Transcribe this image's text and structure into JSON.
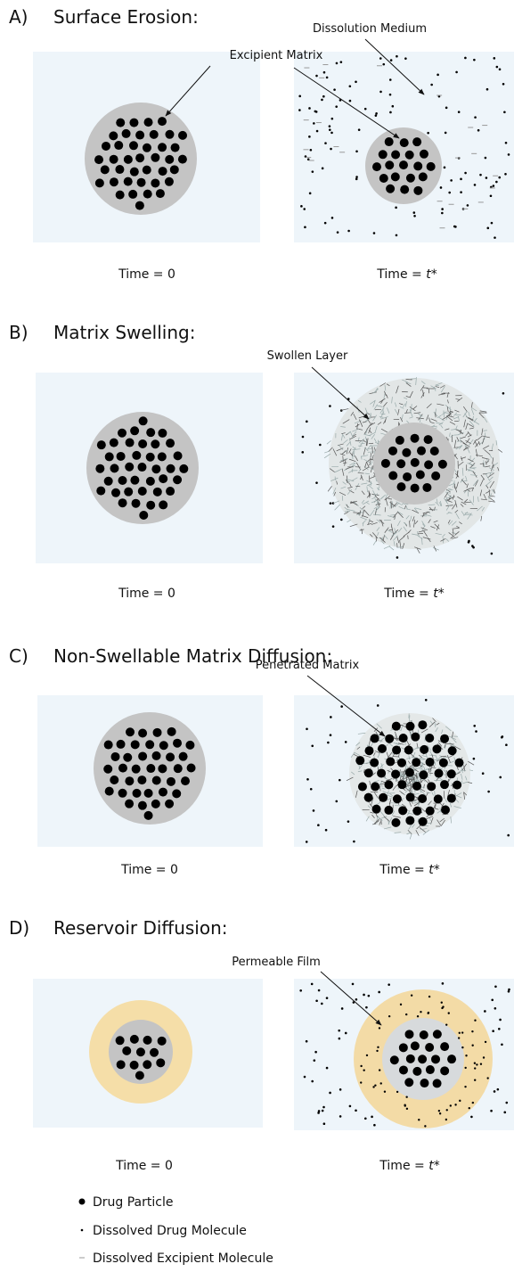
{
  "panels": [
    {
      "label": "A)",
      "title": "Surface Erosion:",
      "callouts": [
        "Dissolution Medium",
        "Excipient Matrix"
      ],
      "time_left": "Time = 0",
      "time_right": {
        "prefix": "Time = ",
        "variable": "t",
        "suffix": "*"
      }
    },
    {
      "label": "B)",
      "title": "Matrix Swelling:",
      "callouts": [
        "Swollen Layer"
      ],
      "time_left": "Time = 0",
      "time_right": {
        "prefix": "Time = ",
        "variable": "t",
        "suffix": "*"
      }
    },
    {
      "label": "C)",
      "title": "Non-Swellable Matrix Diffusion:",
      "callouts": [
        "Penetrated Matrix"
      ],
      "time_left": "Time = 0",
      "time_right": {
        "prefix": "Time = ",
        "variable": "t",
        "suffix": "*"
      }
    },
    {
      "label": "D)",
      "title": "Reservoir Diffusion:",
      "callouts": [
        "Permeable Film"
      ],
      "time_left": "Time = 0",
      "time_right": {
        "prefix": "Time = ",
        "variable": "t",
        "suffix": "*"
      }
    }
  ],
  "legend": [
    "Drug Particle",
    "Dissolved Drug Molecule",
    "Dissolved Excipient Molecule"
  ]
}
